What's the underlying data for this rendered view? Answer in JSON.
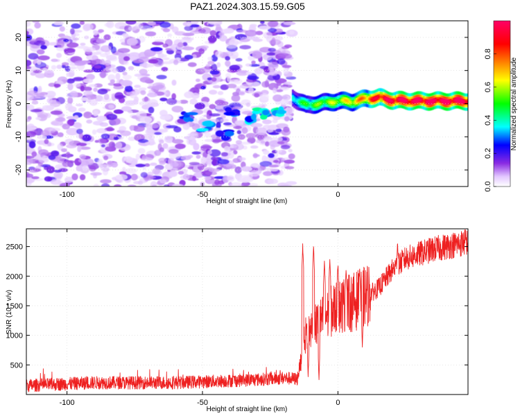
{
  "title": "PAZ1.2024.303.15.59.G05",
  "chart_data": [
    {
      "type": "heatmap",
      "xlabel": "Height of straight line (km)",
      "ylabel": "Frequency (Hz)",
      "xlim": [
        -115,
        48
      ],
      "ylim": [
        -25,
        25
      ],
      "x_ticks": [
        -100,
        -50,
        0
      ],
      "y_ticks": [
        -20,
        -10,
        0,
        10,
        20
      ],
      "colorbar": {
        "label": "Normalized spectral amplitude",
        "range": [
          0.0,
          1.0
        ],
        "ticks": [
          "0.0",
          "0.2",
          "0.4",
          "0.6",
          "0.8"
        ],
        "colors": [
          "#ffffff",
          "#e3c8ff",
          "#8a2be2",
          "#0000ff",
          "#00ffff",
          "#00ff00",
          "#ffff00",
          "#ff8000",
          "#ff0000",
          "#ff0066"
        ]
      },
      "noise_region_x": [
        -115,
        -17
      ],
      "signal_ridge": [
        {
          "x": -17,
          "y": 1.8,
          "a": 0.35
        },
        {
          "x": -12,
          "y": -0.5,
          "a": 0.45
        },
        {
          "x": -6,
          "y": 0.2,
          "a": 0.5
        },
        {
          "x": 0,
          "y": 0.8,
          "a": 0.55
        },
        {
          "x": 5,
          "y": 0.6,
          "a": 0.6
        },
        {
          "x": 10,
          "y": 1.5,
          "a": 0.7
        },
        {
          "x": 15,
          "y": 1.8,
          "a": 0.85
        },
        {
          "x": 20,
          "y": 1.0,
          "a": 0.9
        },
        {
          "x": 30,
          "y": 0.8,
          "a": 0.92
        },
        {
          "x": 48,
          "y": 0.8,
          "a": 0.95
        }
      ],
      "descending_track": [
        {
          "x": -55,
          "y": -4,
          "a": 0.3
        },
        {
          "x": -48,
          "y": -7,
          "a": 0.35
        },
        {
          "x": -42,
          "y": -9,
          "a": 0.3
        },
        {
          "x": -38,
          "y": -2,
          "a": 0.3
        },
        {
          "x": -32,
          "y": -4,
          "a": 0.35
        },
        {
          "x": -28,
          "y": -3,
          "a": 0.4
        },
        {
          "x": -22,
          "y": -2,
          "a": 0.4
        }
      ]
    },
    {
      "type": "line",
      "xlabel": "Height of straight line (km)",
      "ylabel": "SNR (10 * v/v)",
      "xlim": [
        -115,
        48
      ],
      "ylim": [
        0,
        2800
      ],
      "x_ticks": [
        -100,
        -50,
        0
      ],
      "y_ticks": [
        500,
        1000,
        1500,
        2000,
        2500
      ],
      "series": [
        {
          "color": "#ee2020",
          "trend": [
            {
              "x": -115,
              "y": 150
            },
            {
              "x": -90,
              "y": 200
            },
            {
              "x": -60,
              "y": 200
            },
            {
              "x": -30,
              "y": 250
            },
            {
              "x": -20,
              "y": 280
            },
            {
              "x": -15,
              "y": 260
            },
            {
              "x": -14,
              "y": 500
            },
            {
              "x": -12,
              "y": 1000
            },
            {
              "x": -10,
              "y": 1100
            },
            {
              "x": -5,
              "y": 1300
            },
            {
              "x": 0,
              "y": 1500
            },
            {
              "x": 5,
              "y": 1550
            },
            {
              "x": 10,
              "y": 1650
            },
            {
              "x": 15,
              "y": 1800
            },
            {
              "x": 20,
              "y": 2100
            },
            {
              "x": 25,
              "y": 2300
            },
            {
              "x": 35,
              "y": 2450
            },
            {
              "x": 48,
              "y": 2580
            }
          ],
          "spikes": [
            {
              "x": -13,
              "y": 2520
            },
            {
              "x": -9,
              "y": 2500
            },
            {
              "x": -5,
              "y": 2250
            },
            {
              "x": -3,
              "y": 2300
            },
            {
              "x": 0,
              "y": 2220
            },
            {
              "x": 3,
              "y": 2120
            },
            {
              "x": 8,
              "y": 2150
            },
            {
              "x": 22,
              "y": 2580
            },
            {
              "x": 47,
              "y": 2750
            }
          ],
          "dips": [
            {
              "x": -11,
              "y": 300
            },
            {
              "x": -7,
              "y": 250
            },
            {
              "x": 9,
              "y": 800
            }
          ]
        }
      ]
    }
  ]
}
